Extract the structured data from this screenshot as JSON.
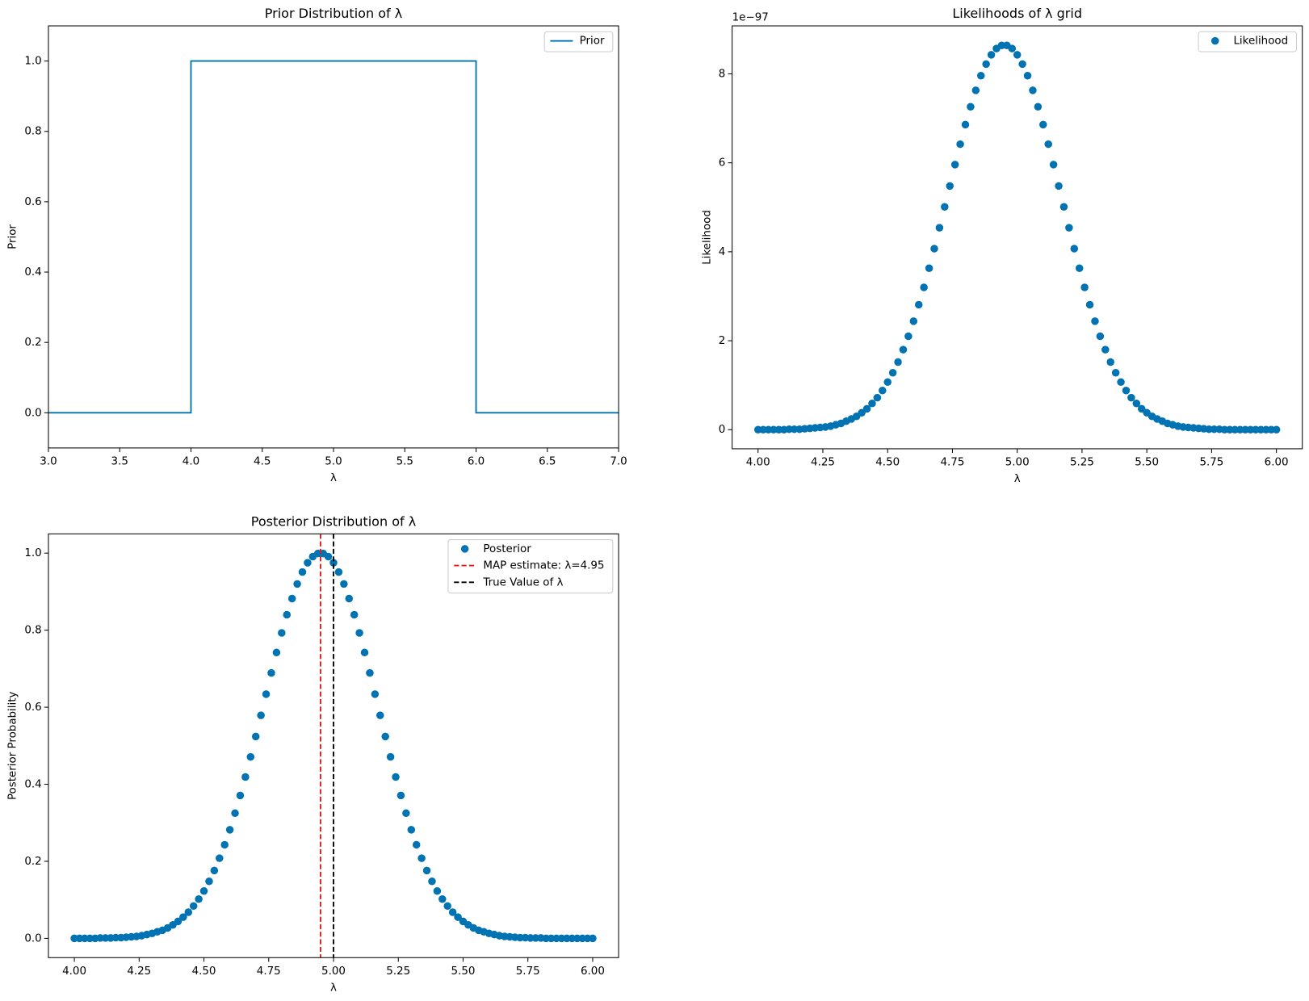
{
  "chart_data": [
    {
      "type": "line",
      "title": "Prior Distribution of λ",
      "xlabel": "λ",
      "ylabel": "Prior",
      "x": [
        3,
        4,
        4,
        6,
        6,
        7
      ],
      "series": [
        {
          "name": "Prior",
          "color": "#0173b2",
          "values": [
            0,
            0,
            1,
            1,
            0,
            0
          ]
        }
      ],
      "xlim": [
        3,
        7
      ],
      "ylim": [
        -0.1,
        1.1
      ],
      "xticks": [
        {
          "value": 3,
          "label": "3.0"
        },
        3.5,
        {
          "value": 4,
          "label": "4.0"
        },
        4.5,
        {
          "value": 5,
          "label": "5.0"
        },
        5.5,
        {
          "value": 6,
          "label": "6.0"
        },
        6.5,
        {
          "value": 7,
          "label": "7.0"
        }
      ],
      "yticks": [
        {
          "value": 0,
          "label": "0.0"
        },
        0.2,
        0.4,
        0.6,
        0.8,
        {
          "value": 1,
          "label": "1.0"
        }
      ],
      "grid": false,
      "legend": "upper right"
    },
    {
      "type": "scatter",
      "title": "Likelihoods of λ grid",
      "xlabel": "λ",
      "ylabel": "Likelihood",
      "y_offset_text": "1e−97",
      "x": [
        4,
        4.02,
        4.04,
        4.06,
        4.08,
        4.1,
        4.12,
        4.14,
        4.16,
        4.18,
        4.2,
        4.22,
        4.24,
        4.26,
        4.28,
        4.3,
        4.32,
        4.34,
        4.36,
        4.38,
        4.4,
        4.42,
        4.44,
        4.46,
        4.48,
        4.5,
        4.52,
        4.54,
        4.56,
        4.58,
        4.6,
        4.62,
        4.64,
        4.66,
        4.68,
        4.7,
        4.72,
        4.74,
        4.76,
        4.78,
        4.8,
        4.82,
        4.84,
        4.86,
        4.88,
        4.9,
        4.92,
        4.94,
        4.96,
        4.98,
        5,
        5.02,
        5.04,
        5.06,
        5.08,
        5.1,
        5.12,
        5.14,
        5.16,
        5.18,
        5.2,
        5.22,
        5.24,
        5.26,
        5.28,
        5.3,
        5.32,
        5.34,
        5.36,
        5.38,
        5.4,
        5.42,
        5.44,
        5.46,
        5.48,
        5.5,
        5.52,
        5.54,
        5.56,
        5.58,
        5.6,
        5.62,
        5.64,
        5.66,
        5.68,
        5.7,
        5.72,
        5.74,
        5.76,
        5.78,
        5.8,
        5.82,
        5.84,
        5.86,
        5.88,
        5.9,
        5.92,
        5.94,
        5.96,
        5.98,
        6
      ],
      "series": [
        {
          "name": "Likelihood",
          "color": "#0173b2",
          "values": [
            0,
            0,
            0,
            0,
            0,
            0,
            0.01,
            0.01,
            0.01,
            0.02,
            0.03,
            0.04,
            0.05,
            0.06,
            0.08,
            0.11,
            0.14,
            0.19,
            0.24,
            0.3,
            0.38,
            0.47,
            0.59,
            0.72,
            0.88,
            1.07,
            1.28,
            1.52,
            1.8,
            2.1,
            2.44,
            2.81,
            3.2,
            3.63,
            4.07,
            4.54,
            5.01,
            5.48,
            5.96,
            6.42,
            6.86,
            7.26,
            7.63,
            7.96,
            8.22,
            8.43,
            8.57,
            8.64,
            8.64,
            8.57,
            8.43,
            8.22,
            7.96,
            7.63,
            7.26,
            6.86,
            6.42,
            5.96,
            5.48,
            5.01,
            4.54,
            4.07,
            3.63,
            3.2,
            2.81,
            2.44,
            2.1,
            1.8,
            1.52,
            1.28,
            1.07,
            0.88,
            0.72,
            0.59,
            0.47,
            0.38,
            0.3,
            0.24,
            0.19,
            0.14,
            0.11,
            0.08,
            0.06,
            0.05,
            0.04,
            0.03,
            0.02,
            0.01,
            0.01,
            0.01,
            0,
            0,
            0,
            0,
            0,
            0,
            0,
            0,
            0,
            0,
            0
          ]
        }
      ],
      "xlim": [
        3.9,
        6.1
      ],
      "ylim": [
        -0.43,
        9.08
      ],
      "xticks": [
        {
          "value": 4,
          "label": "4.00"
        },
        4.25,
        {
          "value": 4.5,
          "label": "4.50"
        },
        4.75,
        {
          "value": 5,
          "label": "5.00"
        },
        5.25,
        {
          "value": 5.5,
          "label": "5.50"
        },
        5.75,
        {
          "value": 6,
          "label": "6.00"
        }
      ],
      "yticks": [
        0,
        2,
        4,
        6,
        8
      ],
      "grid": false,
      "legend": "upper right"
    },
    {
      "type": "scatter",
      "title": "Posterior Distribution of λ",
      "xlabel": "λ",
      "ylabel": "Posterior Probability",
      "x": [
        4,
        4.02,
        4.04,
        4.06,
        4.08,
        4.1,
        4.12,
        4.14,
        4.16,
        4.18,
        4.2,
        4.22,
        4.24,
        4.26,
        4.28,
        4.3,
        4.32,
        4.34,
        4.36,
        4.38,
        4.4,
        4.42,
        4.44,
        4.46,
        4.48,
        4.5,
        4.52,
        4.54,
        4.56,
        4.58,
        4.6,
        4.62,
        4.64,
        4.66,
        4.68,
        4.7,
        4.72,
        4.74,
        4.76,
        4.78,
        4.8,
        4.82,
        4.84,
        4.86,
        4.88,
        4.9,
        4.92,
        4.94,
        4.96,
        4.98,
        5,
        5.02,
        5.04,
        5.06,
        5.08,
        5.1,
        5.12,
        5.14,
        5.16,
        5.18,
        5.2,
        5.22,
        5.24,
        5.26,
        5.28,
        5.3,
        5.32,
        5.34,
        5.36,
        5.38,
        5.4,
        5.42,
        5.44,
        5.46,
        5.48,
        5.5,
        5.52,
        5.54,
        5.56,
        5.58,
        5.6,
        5.62,
        5.64,
        5.66,
        5.68,
        5.7,
        5.72,
        5.74,
        5.76,
        5.78,
        5.8,
        5.82,
        5.84,
        5.86,
        5.88,
        5.9,
        5.92,
        5.94,
        5.96,
        5.98,
        6
      ],
      "series": [
        {
          "name": "Posterior",
          "color": "#0173b2",
          "values": [
            0,
            0,
            0,
            0,
            0,
            0.001,
            0.001,
            0.001,
            0.002,
            0.002,
            0.003,
            0.004,
            0.005,
            0.007,
            0.01,
            0.013,
            0.017,
            0.021,
            0.027,
            0.035,
            0.044,
            0.055,
            0.068,
            0.084,
            0.102,
            0.123,
            0.148,
            0.176,
            0.208,
            0.243,
            0.282,
            0.325,
            0.371,
            0.419,
            0.471,
            0.524,
            0.579,
            0.634,
            0.689,
            0.742,
            0.793,
            0.84,
            0.882,
            0.92,
            0.951,
            0.975,
            0.991,
            0.999,
            0.999,
            0.991,
            0.975,
            0.951,
            0.92,
            0.882,
            0.84,
            0.793,
            0.742,
            0.689,
            0.634,
            0.579,
            0.524,
            0.471,
            0.419,
            0.371,
            0.325,
            0.282,
            0.243,
            0.208,
            0.176,
            0.148,
            0.123,
            0.102,
            0.084,
            0.068,
            0.055,
            0.044,
            0.035,
            0.027,
            0.021,
            0.017,
            0.013,
            0.01,
            0.007,
            0.005,
            0.004,
            0.003,
            0.002,
            0.002,
            0.001,
            0.001,
            0.001,
            0,
            0,
            0,
            0,
            0,
            0,
            0,
            0,
            0,
            0
          ]
        }
      ],
      "vlines": [
        {
          "name": "MAP estimate: λ=4.95",
          "x": 4.95,
          "color": "#e41a1c"
        },
        {
          "name": "True Value of λ",
          "x": 5,
          "color": "#000000"
        }
      ],
      "xlim": [
        3.9,
        6.1
      ],
      "ylim": [
        -0.05,
        1.05
      ],
      "xticks": [
        {
          "value": 4,
          "label": "4.00"
        },
        4.25,
        {
          "value": 4.5,
          "label": "4.50"
        },
        4.75,
        {
          "value": 5,
          "label": "5.00"
        },
        5.25,
        {
          "value": 5.5,
          "label": "5.50"
        },
        5.75,
        {
          "value": 6,
          "label": "6.00"
        }
      ],
      "yticks": [
        {
          "value": 0,
          "label": "0.0"
        },
        0.2,
        0.4,
        0.6,
        0.8,
        {
          "value": 1,
          "label": "1.0"
        }
      ],
      "grid": false,
      "legend": "upper right"
    }
  ]
}
